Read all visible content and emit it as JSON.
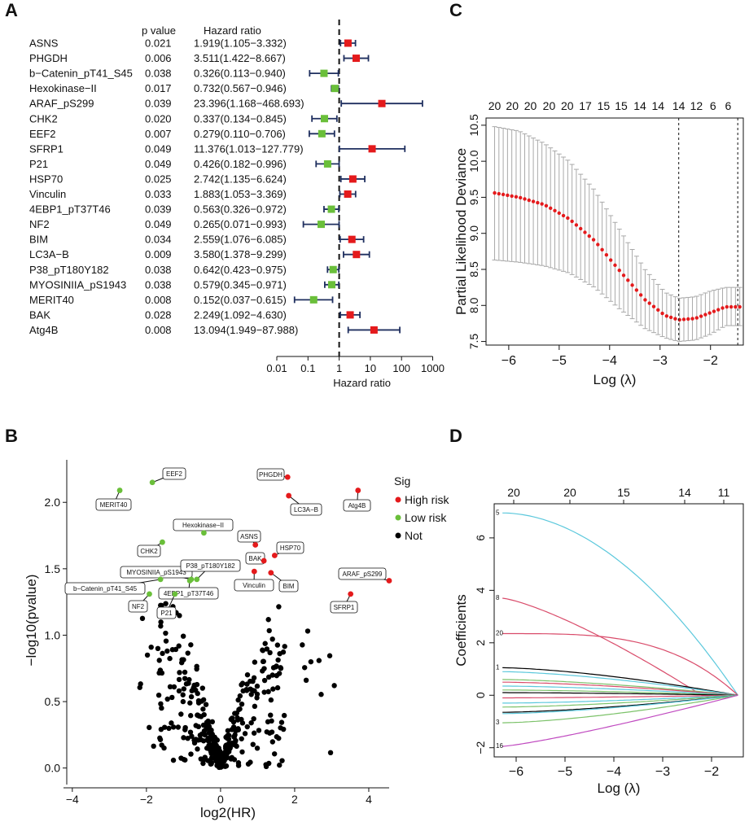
{
  "panels": {
    "a": "A",
    "b": "B",
    "c": "C",
    "d": "D"
  },
  "chart_data": [
    {
      "panel": "A",
      "type": "forest",
      "col_pvalue": "p value",
      "col_hr": "Hazard ratio",
      "xlabel": "Hazard ratio",
      "xscale": "log10",
      "xticks": [
        "0.01",
        "0.1",
        "1",
        "10",
        "100",
        "1000"
      ],
      "xtick_values": [
        0.01,
        0.1,
        1,
        10,
        100,
        1000
      ],
      "reference_line": 1,
      "rows": [
        {
          "name": "ASNS",
          "p": "0.021",
          "hr_text": "1.919(1.105−3.332)",
          "hr": 1.919,
          "lo": 1.105,
          "hi": 3.332,
          "color": "#e41a1c"
        },
        {
          "name": "PHGDH",
          "p": "0.006",
          "hr_text": "3.511(1.422−8.667)",
          "hr": 3.511,
          "lo": 1.422,
          "hi": 8.667,
          "color": "#e41a1c"
        },
        {
          "name": "b−Catenin_pT41_S45",
          "p": "0.038",
          "hr_text": "0.326(0.113−0.940)",
          "hr": 0.326,
          "lo": 0.113,
          "hi": 0.94,
          "color": "#6abf3a"
        },
        {
          "name": "Hexokinase−II",
          "p": "0.017",
          "hr_text": "0.732(0.567−0.946)",
          "hr": 0.732,
          "lo": 0.567,
          "hi": 0.946,
          "color": "#6abf3a"
        },
        {
          "name": "ARAF_pS299",
          "p": "0.039",
          "hr_text": "23.396(1.168−468.693)",
          "hr": 23.396,
          "lo": 1.168,
          "hi": 468.693,
          "color": "#e41a1c"
        },
        {
          "name": "CHK2",
          "p": "0.020",
          "hr_text": "0.337(0.134−0.845)",
          "hr": 0.337,
          "lo": 0.134,
          "hi": 0.845,
          "color": "#6abf3a"
        },
        {
          "name": "EEF2",
          "p": "0.007",
          "hr_text": "0.279(0.110−0.706)",
          "hr": 0.279,
          "lo": 0.11,
          "hi": 0.706,
          "color": "#6abf3a"
        },
        {
          "name": "SFRP1",
          "p": "0.049",
          "hr_text": "11.376(1.013−127.779)",
          "hr": 11.376,
          "lo": 1.013,
          "hi": 127.779,
          "color": "#e41a1c"
        },
        {
          "name": "P21",
          "p": "0.049",
          "hr_text": "0.426(0.182−0.996)",
          "hr": 0.426,
          "lo": 0.182,
          "hi": 0.996,
          "color": "#6abf3a"
        },
        {
          "name": "HSP70",
          "p": "0.025",
          "hr_text": "2.742(1.135−6.624)",
          "hr": 2.742,
          "lo": 1.135,
          "hi": 6.624,
          "color": "#e41a1c"
        },
        {
          "name": "Vinculin",
          "p": "0.033",
          "hr_text": "1.883(1.053−3.369)",
          "hr": 1.883,
          "lo": 1.053,
          "hi": 3.369,
          "color": "#e41a1c"
        },
        {
          "name": "4EBP1_pT37T46",
          "p": "0.039",
          "hr_text": "0.563(0.326−0.972)",
          "hr": 0.563,
          "lo": 0.326,
          "hi": 0.972,
          "color": "#6abf3a"
        },
        {
          "name": "NF2",
          "p": "0.049",
          "hr_text": "0.265(0.071−0.993)",
          "hr": 0.265,
          "lo": 0.071,
          "hi": 0.993,
          "color": "#6abf3a"
        },
        {
          "name": "BIM",
          "p": "0.034",
          "hr_text": "2.559(1.076−6.085)",
          "hr": 2.559,
          "lo": 1.076,
          "hi": 6.085,
          "color": "#e41a1c"
        },
        {
          "name": "LC3A−B",
          "p": "0.009",
          "hr_text": "3.580(1.378−9.299)",
          "hr": 3.58,
          "lo": 1.378,
          "hi": 9.299,
          "color": "#e41a1c"
        },
        {
          "name": "P38_pT180Y182",
          "p": "0.038",
          "hr_text": "0.642(0.423−0.975)",
          "hr": 0.642,
          "lo": 0.423,
          "hi": 0.975,
          "color": "#6abf3a"
        },
        {
          "name": "MYOSINIIA_pS1943",
          "p": "0.038",
          "hr_text": "0.579(0.345−0.971)",
          "hr": 0.579,
          "lo": 0.345,
          "hi": 0.971,
          "color": "#6abf3a"
        },
        {
          "name": "MERIT40",
          "p": "0.008",
          "hr_text": "0.152(0.037−0.615)",
          "hr": 0.152,
          "lo": 0.037,
          "hi": 0.615,
          "color": "#6abf3a"
        },
        {
          "name": "BAK",
          "p": "0.028",
          "hr_text": "2.249(1.092−4.630)",
          "hr": 2.249,
          "lo": 1.092,
          "hi": 4.63,
          "color": "#e41a1c"
        },
        {
          "name": "Atg4B",
          "p": "0.008",
          "hr_text": "13.094(1.949−87.988)",
          "hr": 13.094,
          "lo": 1.949,
          "hi": 87.988,
          "color": "#e41a1c"
        }
      ]
    },
    {
      "panel": "C",
      "type": "scatter",
      "title": "",
      "xlabel": "Log (λ)",
      "ylabel": "Partial Likelihood Deviance",
      "xlim": [
        -6.45,
        -1.35
      ],
      "ylim": [
        7.45,
        10.6
      ],
      "xticks": [
        -6,
        -5,
        -4,
        -3,
        -2
      ],
      "xtick_labels": [
        "−6",
        "−5",
        "−4",
        "−3",
        "−2"
      ],
      "yticks": [
        7.5,
        8.0,
        8.5,
        9.0,
        9.5,
        10.0,
        10.5
      ],
      "ytick_labels": [
        "7.5",
        "8.0",
        "8.5",
        "9.0",
        "9.5",
        "10.0",
        "10.5"
      ],
      "top_labels": [
        "20",
        "20",
        "20",
        "20",
        "20",
        "17",
        "15",
        "15",
        "14",
        "14",
        "14",
        "12",
        "6",
        "6"
      ],
      "top_label_x": [
        -6.28,
        -5.93,
        -5.57,
        -5.2,
        -4.84,
        -4.48,
        -4.12,
        -3.77,
        -3.4,
        -3.04,
        -2.63,
        -2.28,
        -1.95,
        -1.65
      ],
      "vlines": [
        -2.63,
        -1.46
      ],
      "curve": {
        "x_start": -6.28,
        "x_end": -1.42,
        "n": 58,
        "key_x": [
          -6.28,
          -5.8,
          -5.3,
          -4.8,
          -4.3,
          -3.8,
          -3.3,
          -2.9,
          -2.63,
          -2.3,
          -2.0,
          -1.7,
          -1.42
        ],
        "key_y": [
          9.56,
          9.5,
          9.4,
          9.2,
          8.9,
          8.48,
          8.08,
          7.86,
          7.8,
          7.82,
          7.9,
          7.98,
          7.98
        ],
        "key_lo": [
          8.63,
          8.6,
          8.55,
          8.45,
          8.25,
          7.95,
          7.68,
          7.55,
          7.5,
          7.52,
          7.6,
          7.72,
          7.72
        ],
        "key_hi": [
          10.48,
          10.42,
          10.25,
          10.0,
          9.6,
          9.05,
          8.5,
          8.18,
          8.1,
          8.12,
          8.2,
          8.25,
          8.25
        ]
      },
      "point_color": "#e41a1c",
      "errorbar_color": "#a9a9a9"
    },
    {
      "panel": "B",
      "type": "scatter",
      "xlabel": "log2(HR)",
      "ylabel": "−log10(pvalue)",
      "xlim": [
        -4.15,
        4.55
      ],
      "ylim": [
        -0.1,
        2.32
      ],
      "xticks": [
        -4,
        -2,
        0,
        2,
        4
      ],
      "xtick_labels": [
        "−4",
        "−2",
        "0",
        "2",
        "4"
      ],
      "yticks": [
        0.0,
        0.5,
        1.0,
        1.5,
        2.0
      ],
      "ytick_labels": [
        "0.0",
        "0.5",
        "1.0",
        "1.5",
        "2.0"
      ],
      "legend": {
        "title": "Sig",
        "items": [
          {
            "label": "High risk",
            "color": "#e41a1c"
          },
          {
            "label": "Low risk",
            "color": "#6abf3a"
          },
          {
            "label": "Not",
            "color": "#000000"
          }
        ]
      },
      "highlighted": [
        {
          "label": "PHGDH",
          "x": 1.81,
          "y": 2.19,
          "group": "High risk"
        },
        {
          "label": "Atg4B",
          "x": 3.71,
          "y": 2.09,
          "group": "High risk"
        },
        {
          "label": "LC3A−B",
          "x": 1.84,
          "y": 2.05,
          "group": "High risk"
        },
        {
          "label": "ASNS",
          "x": 0.94,
          "y": 1.68,
          "group": "High risk"
        },
        {
          "label": "HSP70",
          "x": 1.46,
          "y": 1.6,
          "group": "High risk"
        },
        {
          "label": "BAK",
          "x": 1.17,
          "y": 1.56,
          "group": "High risk"
        },
        {
          "label": "BIM",
          "x": 1.36,
          "y": 1.47,
          "group": "High risk"
        },
        {
          "label": "Vinculin",
          "x": 0.91,
          "y": 1.48,
          "group": "High risk"
        },
        {
          "label": "ARAF_pS299",
          "x": 4.55,
          "y": 1.41,
          "group": "High risk"
        },
        {
          "label": "SFRP1",
          "x": 3.51,
          "y": 1.31,
          "group": "High risk"
        },
        {
          "label": "EEF2",
          "x": -1.84,
          "y": 2.15,
          "group": "Low risk"
        },
        {
          "label": "MERIT40",
          "x": -2.72,
          "y": 2.09,
          "group": "Low risk"
        },
        {
          "label": "Hexokinase−II",
          "x": -0.45,
          "y": 1.77,
          "group": "Low risk"
        },
        {
          "label": "CHK2",
          "x": -1.57,
          "y": 1.7,
          "group": "Low risk"
        },
        {
          "label": "MYOSINIIA_pS1943",
          "x": -0.79,
          "y": 1.42,
          "group": "Low risk"
        },
        {
          "label": "P38_pT180Y182",
          "x": -0.64,
          "y": 1.42,
          "group": "Low risk"
        },
        {
          "label": "b−Catenin_pT41_S45",
          "x": -1.62,
          "y": 1.42,
          "group": "Low risk"
        },
        {
          "label": "4EBP1_pT37T46",
          "x": -0.83,
          "y": 1.41,
          "group": "Low risk"
        },
        {
          "label": "NF2",
          "x": -1.92,
          "y": 1.31,
          "group": "Low risk"
        },
        {
          "label": "P21",
          "x": -1.23,
          "y": 1.31,
          "group": "Low risk"
        }
      ],
      "background_points": 400
    },
    {
      "panel": "D",
      "type": "line",
      "xlabel": "Log (λ)",
      "ylabel": "Coefficients",
      "xlim": [
        -6.45,
        -1.35
      ],
      "ylim": [
        -2.35,
        7.3
      ],
      "xticks": [
        -6,
        -5,
        -4,
        -3,
        -2
      ],
      "xtick_labels": [
        "−6",
        "−5",
        "−4",
        "−3",
        "−2"
      ],
      "yticks": [
        -2,
        0,
        2,
        4,
        6
      ],
      "ytick_labels": [
        "−2",
        "0",
        "2",
        "4",
        "6"
      ],
      "top_labels": [
        "20",
        "20",
        "15",
        "14",
        "11"
      ],
      "top_label_x": [
        -6.05,
        -4.9,
        -3.8,
        -2.55,
        -1.75
      ],
      "converge_x": -1.46,
      "series": [
        {
          "label": "5",
          "color": "#5bc8dc",
          "start": 6.95,
          "shape": "cyan"
        },
        {
          "label": "8",
          "color": "#d94b6a",
          "start": 3.7,
          "shape": "early"
        },
        {
          "label": "20",
          "color": "#d94b6a",
          "start": 2.35,
          "shape": "flat_late"
        },
        {
          "label": "1",
          "color": "#000000",
          "start": 1.05,
          "shape": "linear"
        },
        {
          "label": "",
          "color": "#5bc8dc",
          "start": 0.9,
          "shape": "linear"
        },
        {
          "label": "",
          "color": "#7cc26a",
          "start": 0.6,
          "shape": "linear"
        },
        {
          "label": "",
          "color": "#d94b6a",
          "start": 0.5,
          "shape": "linear"
        },
        {
          "label": "",
          "color": "#5bc8dc",
          "start": 0.35,
          "shape": "linear"
        },
        {
          "label": "",
          "color": "#7cc26a",
          "start": 0.2,
          "shape": "linear"
        },
        {
          "label": "",
          "color": "#000000",
          "start": 0.1,
          "shape": "linear"
        },
        {
          "label": "",
          "color": "#d94b6a",
          "start": -0.1,
          "shape": "linear"
        },
        {
          "label": "",
          "color": "#5bc8dc",
          "start": -0.3,
          "shape": "linear"
        },
        {
          "label": "",
          "color": "#7cc26a",
          "start": -0.45,
          "shape": "linear"
        },
        {
          "label": "",
          "color": "#000000",
          "start": -0.65,
          "shape": "linear"
        },
        {
          "label": "",
          "color": "#5bc8dc",
          "start": -0.7,
          "shape": "linear"
        },
        {
          "label": "3",
          "color": "#7cc26a",
          "start": -1.05,
          "shape": "linear"
        },
        {
          "label": "16",
          "color": "#c04ac0",
          "start": -1.95,
          "shape": "magenta"
        }
      ]
    }
  ]
}
